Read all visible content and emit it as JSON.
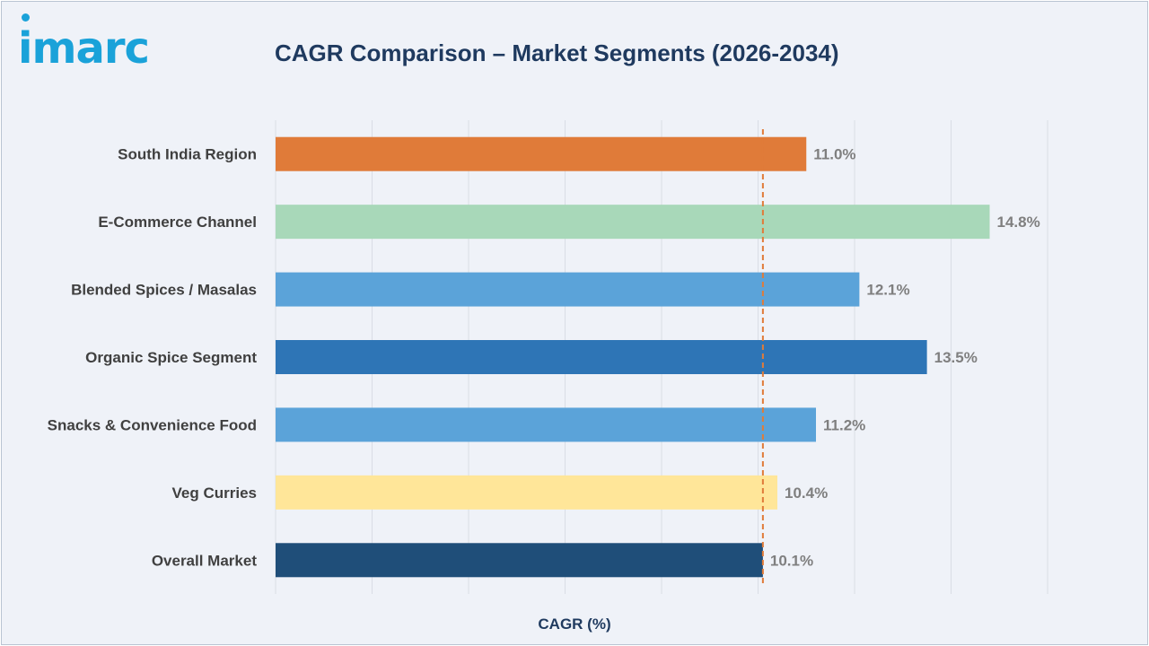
{
  "brand": {
    "logo_text": "imarc"
  },
  "chart_data": {
    "type": "bar",
    "orientation": "horizontal",
    "title": "CAGR Comparison – Market Segments (2026-2034)",
    "xlabel": "CAGR (%)",
    "ylabel": "",
    "xlim": [
      0,
      16
    ],
    "grid": true,
    "categories": [
      "South India Region",
      "E-Commerce Channel",
      "Blended Spices / Masalas",
      "Organic Spice Segment",
      "Snacks & Convenience Food",
      "Veg Curries",
      "Overall Market"
    ],
    "values": [
      11.0,
      14.8,
      12.1,
      13.5,
      11.2,
      10.4,
      10.1
    ],
    "data_labels": [
      "11.0%",
      "14.8%",
      "12.1%",
      "13.5%",
      "11.2%",
      "10.4%",
      "10.1%"
    ],
    "bar_colors": [
      "#e07b39",
      "#a8d8b9",
      "#5ba3d9",
      "#2e75b6",
      "#5ba3d9",
      "#ffe699",
      "#1f4e79"
    ],
    "reference_line": {
      "value": 10.1,
      "color": "#e07b39",
      "style": "dashed"
    }
  },
  "colors": {
    "title": "#1f3a5f",
    "labels": "#404040",
    "data_labels": "#7f7f7f",
    "grid": "#d9dde5",
    "brand": "#1aa2d9"
  }
}
